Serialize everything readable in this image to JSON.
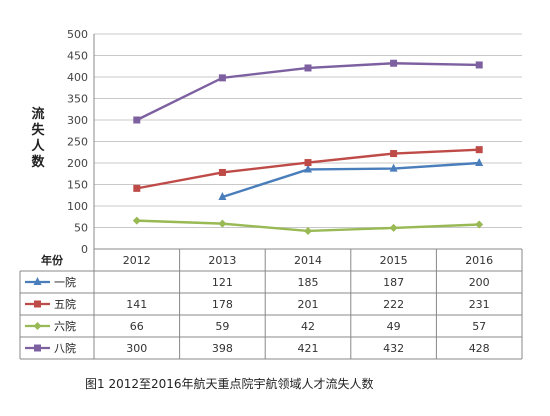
{
  "chart_data": {
    "type": "line",
    "title": "",
    "caption": "图1 2012至2016年航天重点院宇航领域人才流失人数",
    "ylabel": "流失人数",
    "table_header_label": "年份",
    "categories": [
      "2012",
      "2013",
      "2014",
      "2015",
      "2016"
    ],
    "ylim": [
      0,
      500
    ],
    "yticks": [
      0,
      50,
      100,
      150,
      200,
      250,
      300,
      350,
      400,
      450,
      500
    ],
    "grid": true,
    "legend_placement": "data-table",
    "series": [
      {
        "name": "一院",
        "color": "#4a7ebb",
        "values": [
          null,
          121,
          185,
          187,
          200
        ]
      },
      {
        "name": "五院",
        "color": "#be4b48",
        "values": [
          141,
          178,
          201,
          222,
          231
        ]
      },
      {
        "name": "六院",
        "color": "#98b954",
        "values": [
          66,
          59,
          42,
          49,
          57
        ]
      },
      {
        "name": "八院",
        "color": "#7d60a0",
        "values": [
          300,
          398,
          421,
          432,
          428
        ]
      }
    ]
  }
}
